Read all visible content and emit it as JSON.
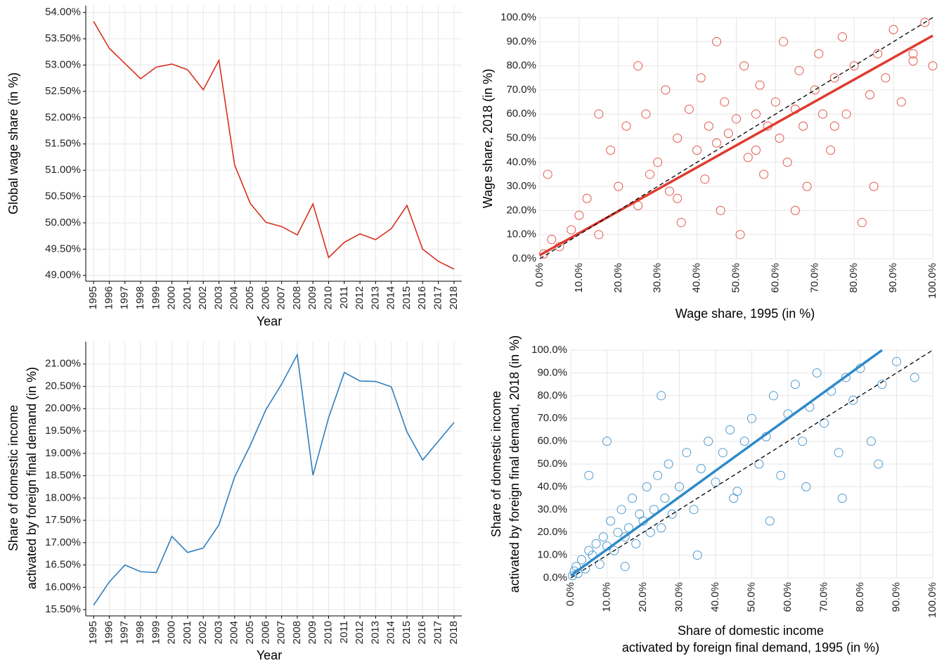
{
  "chart_data": [
    {
      "type": "line",
      "x_label": "Year",
      "y_label": "Global wage share (in %)",
      "color": "#d7301f",
      "grid": true,
      "categories": [
        "1995",
        "1996",
        "1997",
        "1998",
        "1999",
        "2000",
        "2001",
        "2002",
        "2003",
        "2004",
        "2005",
        "2006",
        "2007",
        "2008",
        "2009",
        "2010",
        "2011",
        "2012",
        "2013",
        "2014",
        "2015",
        "2016",
        "2017",
        "2018"
      ],
      "values": [
        53.83,
        53.32,
        53.03,
        52.74,
        52.96,
        53.02,
        52.91,
        52.53,
        53.09,
        51.1,
        50.37,
        50.01,
        49.93,
        49.77,
        50.36,
        49.34,
        49.63,
        49.79,
        49.68,
        49.89,
        50.33,
        49.5,
        49.27,
        49.12
      ],
      "ylim": [
        48.89,
        54.13
      ],
      "yticks": [
        {
          "value": 49,
          "label": "49.00%"
        },
        {
          "value": 49.5,
          "label": "49.50%"
        },
        {
          "value": 50,
          "label": "50.00%"
        },
        {
          "value": 50.5,
          "label": "50.50%"
        },
        {
          "value": 51,
          "label": "51.00%"
        },
        {
          "value": 51.5,
          "label": "51.50%"
        },
        {
          "value": 52,
          "label": "52.00%"
        },
        {
          "value": 52.5,
          "label": "52.50%"
        },
        {
          "value": 53,
          "label": "53.00%"
        },
        {
          "value": 53.5,
          "label": "53.50%"
        },
        {
          "value": 54,
          "label": "54.00%"
        }
      ]
    },
    {
      "type": "scatter",
      "x_label": "Wage share, 1995 (in %)",
      "y_label": "Wage share, 2018 (in %)",
      "color": "#e03a2f",
      "grid": true,
      "x": [
        1,
        3,
        5,
        8,
        10,
        12,
        15,
        18,
        20,
        22,
        25,
        27,
        28,
        30,
        32,
        33,
        35,
        36,
        38,
        40,
        41,
        42,
        43,
        45,
        46,
        47,
        48,
        50,
        51,
        52,
        53,
        55,
        56,
        57,
        58,
        60,
        61,
        62,
        63,
        65,
        66,
        67,
        68,
        70,
        71,
        72,
        74,
        75,
        77,
        78,
        80,
        82,
        84,
        86,
        88,
        90,
        92,
        95,
        98,
        100,
        2,
        15,
        25,
        35,
        45,
        55,
        65,
        75,
        85,
        95
      ],
      "y": [
        2,
        8,
        5,
        12,
        18,
        25,
        10,
        45,
        30,
        55,
        22,
        60,
        35,
        40,
        70,
        28,
        50,
        15,
        62,
        45,
        75,
        33,
        55,
        48,
        20,
        65,
        52,
        58,
        10,
        80,
        42,
        60,
        72,
        35,
        55,
        65,
        50,
        90,
        40,
        62,
        78,
        55,
        30,
        70,
        85,
        60,
        45,
        75,
        92,
        60,
        80,
        15,
        68,
        85,
        75,
        95,
        65,
        82,
        98,
        80,
        35,
        60,
        80,
        25,
        90,
        45,
        20,
        55,
        30,
        85
      ],
      "fit": {
        "x": [
          0,
          100
        ],
        "y": [
          1.5,
          92.5
        ]
      },
      "reference": {
        "x": [
          0,
          100
        ],
        "y": [
          0,
          100
        ]
      },
      "xlim": [
        0,
        100
      ],
      "ylim": [
        0,
        100
      ],
      "xticks": [
        {
          "value": 0,
          "label": "0.0%"
        },
        {
          "value": 10,
          "label": "10.0%"
        },
        {
          "value": 20,
          "label": "20.0%"
        },
        {
          "value": 30,
          "label": "30.0%"
        },
        {
          "value": 40,
          "label": "40.0%"
        },
        {
          "value": 50,
          "label": "50.0%"
        },
        {
          "value": 60,
          "label": "60.0%"
        },
        {
          "value": 70,
          "label": "70.0%"
        },
        {
          "value": 80,
          "label": "80.0%"
        },
        {
          "value": 90,
          "label": "90.0%"
        },
        {
          "value": 100,
          "label": "100.0%"
        }
      ],
      "yticks": [
        {
          "value": 0,
          "label": "0.0%"
        },
        {
          "value": 10,
          "label": "10.0%"
        },
        {
          "value": 20,
          "label": "20.0%"
        },
        {
          "value": 30,
          "label": "30.0%"
        },
        {
          "value": 40,
          "label": "40.0%"
        },
        {
          "value": 50,
          "label": "50.0%"
        },
        {
          "value": 60,
          "label": "60.0%"
        },
        {
          "value": 70,
          "label": "70.0%"
        },
        {
          "value": 80,
          "label": "80.0%"
        },
        {
          "value": 90,
          "label": "90.0%"
        },
        {
          "value": 100,
          "label": "100.0%"
        }
      ]
    },
    {
      "type": "line",
      "x_label": "Year",
      "y_label": [
        "Share of domestic income",
        "activated by foreign final demand (in %)"
      ],
      "color": "#2f7fbf",
      "grid": true,
      "categories": [
        "1995",
        "1996",
        "1997",
        "1998",
        "1999",
        "2000",
        "2001",
        "2002",
        "2003",
        "2004",
        "2005",
        "2006",
        "2007",
        "2008",
        "2009",
        "2010",
        "2011",
        "2012",
        "2013",
        "2014",
        "2015",
        "2016",
        "2017",
        "2018"
      ],
      "values": [
        15.6,
        16.12,
        16.5,
        16.35,
        16.33,
        17.14,
        16.78,
        16.88,
        17.4,
        18.47,
        19.18,
        19.98,
        20.55,
        21.21,
        18.51,
        19.8,
        20.81,
        20.62,
        20.61,
        20.49,
        19.48,
        18.85,
        19.27,
        19.69
      ],
      "ylim": [
        15.36,
        21.5
      ],
      "yticks": [
        {
          "value": 15.5,
          "label": "15.50%"
        },
        {
          "value": 16,
          "label": "16.00%"
        },
        {
          "value": 16.5,
          "label": "16.50%"
        },
        {
          "value": 17,
          "label": "17.00%"
        },
        {
          "value": 17.5,
          "label": "17.50%"
        },
        {
          "value": 18,
          "label": "18.00%"
        },
        {
          "value": 18.5,
          "label": "18.50%"
        },
        {
          "value": 19,
          "label": "19.00%"
        },
        {
          "value": 19.5,
          "label": "19.50%"
        },
        {
          "value": 20,
          "label": "20.00%"
        },
        {
          "value": 20.5,
          "label": "20.50%"
        },
        {
          "value": 21,
          "label": "21.00%"
        }
      ]
    },
    {
      "type": "scatter",
      "x_label": [
        "Share of domestic income",
        "activated by foreign final demand, 1995 (in %)"
      ],
      "y_label": [
        "Share of domestic income",
        "activated by foreign final demand, 2018 (in %)"
      ],
      "color": "#2f8ac8",
      "grid": true,
      "x": [
        0.5,
        1,
        1.5,
        2,
        3,
        4,
        5,
        6,
        7,
        8,
        9,
        10,
        11,
        12,
        13,
        14,
        15,
        16,
        17,
        18,
        19,
        20,
        21,
        22,
        23,
        24,
        25,
        26,
        27,
        28,
        30,
        32,
        34,
        36,
        38,
        40,
        42,
        44,
        46,
        48,
        50,
        52,
        54,
        56,
        58,
        60,
        62,
        64,
        66,
        68,
        70,
        72,
        74,
        76,
        78,
        80,
        83,
        86,
        90,
        95,
        5,
        10,
        15,
        25,
        35,
        45,
        55,
        65,
        75,
        85
      ],
      "y": [
        1,
        3,
        5,
        2,
        8,
        4,
        12,
        10,
        15,
        6,
        18,
        14,
        25,
        12,
        20,
        30,
        18,
        22,
        35,
        15,
        28,
        25,
        40,
        20,
        30,
        45,
        22,
        35,
        50,
        28,
        40,
        55,
        30,
        48,
        60,
        42,
        55,
        65,
        38,
        60,
        70,
        50,
        62,
        80,
        45,
        72,
        85,
        60,
        75,
        90,
        68,
        82,
        55,
        88,
        78,
        92,
        60,
        85,
        95,
        88,
        45,
        60,
        5,
        80,
        10,
        35,
        25,
        40,
        35,
        50
      ],
      "fit": {
        "x": [
          0,
          86
        ],
        "y": [
          1,
          100
        ]
      },
      "reference": {
        "x": [
          0,
          100
        ],
        "y": [
          0,
          100
        ]
      },
      "xlim": [
        0,
        100
      ],
      "ylim": [
        0,
        100
      ],
      "xticks": [
        {
          "value": 0,
          "label": "0.0%"
        },
        {
          "value": 10,
          "label": "10.0%"
        },
        {
          "value": 20,
          "label": "20.0%"
        },
        {
          "value": 30,
          "label": "30.0%"
        },
        {
          "value": 40,
          "label": "40.0%"
        },
        {
          "value": 50,
          "label": "50.0%"
        },
        {
          "value": 60,
          "label": "60.0%"
        },
        {
          "value": 70,
          "label": "70.0%"
        },
        {
          "value": 80,
          "label": "80.0%"
        },
        {
          "value": 90,
          "label": "90.0%"
        },
        {
          "value": 100,
          "label": "100.0%"
        }
      ],
      "yticks": [
        {
          "value": 0,
          "label": "0.0%"
        },
        {
          "value": 10,
          "label": "10.0%"
        },
        {
          "value": 20,
          "label": "20.0%"
        },
        {
          "value": 30,
          "label": "30.0%"
        },
        {
          "value": 40,
          "label": "40.0%"
        },
        {
          "value": 50,
          "label": "50.0%"
        },
        {
          "value": 60,
          "label": "60.0%"
        },
        {
          "value": 70,
          "label": "70.0%"
        },
        {
          "value": 80,
          "label": "80.0%"
        },
        {
          "value": 90,
          "label": "90.0%"
        },
        {
          "value": 100,
          "label": "100.0%"
        }
      ]
    }
  ]
}
